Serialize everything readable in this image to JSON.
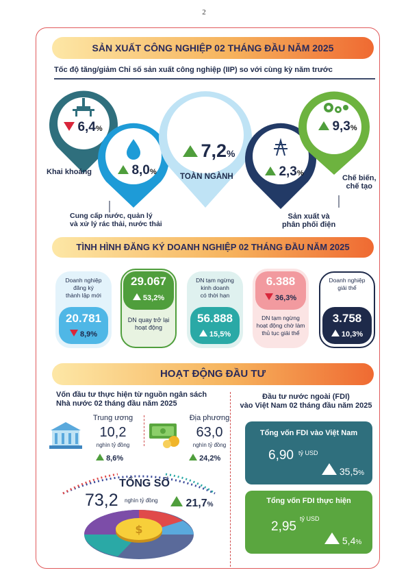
{
  "page_number": "2",
  "industry": {
    "banner": "SẢN XUẤT CÔNG NGHIỆP 02 THÁNG ĐẦU NĂM 2025",
    "subtitle": "Tốc độ tăng/giảm Chỉ số sản xuất công nghiệp (IIP) so với cùng kỳ năm trước",
    "items": [
      {
        "label": "Khai khoáng",
        "value": "6,4",
        "unit": "%",
        "direction": "down",
        "color": "#2f6f7d"
      },
      {
        "label": "Cung cấp nước, quản lý và xử lý rác thải, nước thải",
        "label_line1": "Cung cấp nước, quản lý",
        "label_line2": "và xử lý rác thải, nước thải",
        "value": "8,0",
        "unit": "%",
        "direction": "up",
        "color": "#1e9bd7"
      },
      {
        "label": "TOÀN NGÀNH",
        "value": "7,2",
        "unit": "%",
        "direction": "up",
        "color": "#bfe3f5"
      },
      {
        "label": "Sản xuất và phân phối điện",
        "label_line1": "Sản xuất và",
        "label_line2": "phân phối điện",
        "value": "2,3",
        "unit": "%",
        "direction": "up",
        "color": "#223a66"
      },
      {
        "label": "Chế biến, chế tạo",
        "label_line1": "Chế biến,",
        "label_line2": "chế tạo",
        "value": "9,3",
        "unit": "%",
        "direction": "up",
        "color": "#6db33f"
      }
    ]
  },
  "business": {
    "banner": "TÌNH HÌNH ĐĂNG KÝ DOANH NGHIỆP 02 THÁNG ĐẦU NĂM 2025",
    "cards": [
      {
        "label_lines": [
          "Doanh nghiệp",
          "đăng ký",
          "thành lập mới"
        ],
        "value": "20.781",
        "pct": "8,9",
        "unit": "%",
        "direction": "down",
        "color": "#4fb7e6"
      },
      {
        "label_lines": [
          "DN quay trở lại",
          "hoạt động"
        ],
        "value": "29.067",
        "pct": "53,2",
        "unit": "%",
        "direction": "up",
        "color": "#4f9e3c"
      },
      {
        "label_lines": [
          "DN tạm ngừng",
          "kinh doanh",
          "có thời hạn"
        ],
        "value": "56.888",
        "pct": "15,5",
        "unit": "%",
        "direction": "up",
        "color": "#2aa9a6"
      },
      {
        "label_lines": [
          "DN tạm ngừng",
          "hoạt động chờ làm",
          "thủ tục giải thể"
        ],
        "value": "6.388",
        "pct": "36,3",
        "unit": "%",
        "direction": "down",
        "color": "#f29a9f"
      },
      {
        "label_lines": [
          "Doanh nghiệp",
          "giải thể"
        ],
        "value": "3.758",
        "pct": "10,3",
        "unit": "%",
        "direction": "up",
        "color": "#1e2a4a"
      }
    ]
  },
  "investment": {
    "banner": "HOẠT ĐỘNG ĐẦU TƯ",
    "state_title_line1": "Vốn đầu tư thực hiện từ nguồn ngân sách",
    "state_title_line2": "Nhà nước 02 tháng đầu năm 2025",
    "central": {
      "label": "Trung ương",
      "value": "10,2",
      "unit": "nghìn tỷ đồng",
      "pct": "8,6",
      "pct_unit": "%"
    },
    "local": {
      "label": "Địa phương",
      "value": "63,0",
      "unit": "nghìn tỷ đồng",
      "pct": "24,2",
      "pct_unit": "%"
    },
    "total": {
      "label": "TỔNG SỐ",
      "value": "73,2",
      "unit": "nghìn tỷ đồng",
      "pct": "21,7",
      "pct_unit": "%"
    },
    "fdi_title_line1": "Đầu tư nước ngoài (FDI)",
    "fdi_title_line2": "vào Việt Nam 02 tháng đầu năm 2025",
    "fdi_registered": {
      "title": "Tổng vốn FDI vào Việt Nam",
      "value": "6,90",
      "unit": "tỷ USD",
      "pct": "35,5",
      "pct_unit": "%",
      "color": "#2f6f7d"
    },
    "fdi_realized": {
      "title": "Tổng vốn FDI thực hiện",
      "value": "2,95",
      "unit": "tỷ USD",
      "pct": "5,4",
      "pct_unit": "%",
      "color": "#5aa63f"
    }
  }
}
